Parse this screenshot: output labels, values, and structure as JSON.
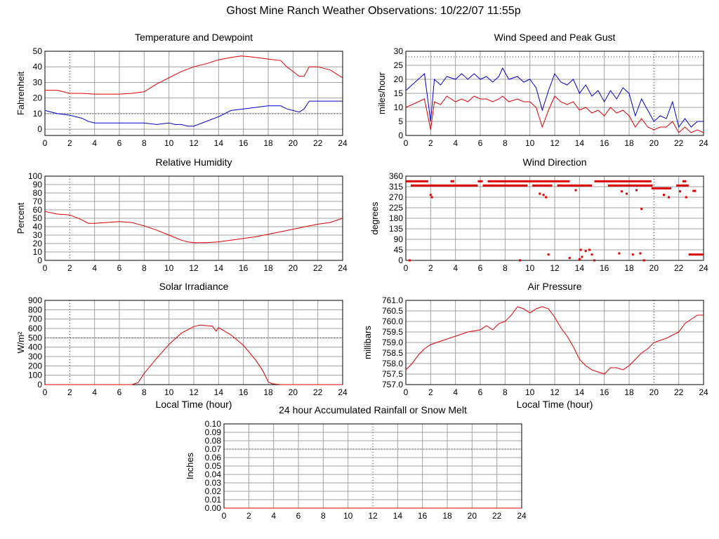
{
  "main_title": "Ghost Mine Ranch Weather Observations: 10/22/07 11:55p",
  "colors": {
    "red": "#dd0000",
    "blue": "#0000cc",
    "grid": "#a0a0a0",
    "axis": "#000000"
  },
  "chart_data": [
    {
      "id": "temp",
      "type": "line",
      "title": "Temperature and Dewpoint",
      "xlabel": "",
      "ylabel": "Fahrenheit",
      "xlim": [
        0,
        24
      ],
      "ylim": [
        -4,
        50
      ],
      "xticks": [
        0,
        2,
        4,
        6,
        8,
        10,
        12,
        14,
        16,
        18,
        20,
        22,
        24
      ],
      "yticks": [
        0,
        10,
        20,
        30,
        40,
        50
      ],
      "grid": true,
      "series": [
        {
          "color": "#dd0000",
          "x": [
            0,
            1,
            2,
            3,
            4,
            5,
            6,
            7,
            8,
            9,
            10,
            11,
            12,
            13,
            14,
            15,
            15.8,
            16.5,
            17,
            18,
            19,
            19.5,
            20,
            20.5,
            20.9,
            21.3,
            22,
            23,
            24
          ],
          "values": [
            25,
            25,
            23,
            23,
            22.5,
            22.5,
            22.5,
            23,
            24,
            29,
            33,
            37,
            40,
            42,
            44.5,
            46,
            47,
            46.5,
            46,
            45,
            44,
            40,
            37,
            34,
            34,
            40,
            40,
            38,
            33
          ]
        },
        {
          "color": "#0000cc",
          "x": [
            0,
            1,
            2,
            3,
            3.5,
            4,
            5,
            6,
            7,
            8,
            9,
            10,
            10.5,
            11,
            11.5,
            12,
            13,
            14,
            15,
            16,
            17,
            18,
            19,
            19.5,
            20,
            20.5,
            20.9,
            21.3,
            22,
            23,
            24
          ],
          "values": [
            12,
            10,
            9,
            7,
            5,
            4,
            4,
            4,
            4,
            4,
            3,
            4,
            3,
            3,
            2,
            2,
            5,
            8,
            12,
            13,
            14,
            15,
            15,
            13,
            12,
            11,
            13,
            18,
            18,
            18,
            18
          ]
        }
      ]
    },
    {
      "id": "wind",
      "type": "line",
      "title": "Wind Speed and Peak Gust",
      "xlabel": "",
      "ylabel": "miles/hour",
      "xlim": [
        0,
        24
      ],
      "ylim": [
        0,
        30
      ],
      "xticks": [
        0,
        2,
        4,
        6,
        8,
        10,
        12,
        14,
        16,
        18,
        20,
        22,
        24
      ],
      "yticks": [
        0,
        5,
        10,
        15,
        20,
        25,
        30
      ],
      "grid": true,
      "series": [
        {
          "color": "#0000cc",
          "x": [
            0,
            0.5,
            1,
            1.5,
            2,
            2.3,
            2.8,
            3.3,
            4,
            4.5,
            5,
            5.5,
            6,
            6.5,
            7,
            7.5,
            7.8,
            8.3,
            9,
            9.5,
            10,
            10.5,
            11,
            11.5,
            12,
            12.5,
            13,
            13.5,
            14,
            14.5,
            15,
            15.5,
            16,
            16.5,
            17,
            17.5,
            18,
            18.5,
            19,
            19.5,
            20,
            20.5,
            21,
            21.5,
            22,
            22.5,
            23,
            23.5,
            24
          ],
          "values": [
            16,
            18,
            20,
            22,
            5,
            20,
            18,
            21,
            20,
            22,
            20,
            22,
            20,
            21,
            19,
            21,
            24,
            20,
            21,
            19,
            20,
            17,
            9,
            16,
            22,
            19,
            18,
            20,
            15,
            18,
            14,
            16,
            12,
            16,
            13,
            17,
            15,
            7,
            13,
            9,
            5,
            7,
            6,
            12,
            3,
            6,
            3,
            5,
            5
          ]
        },
        {
          "color": "#dd0000",
          "x": [
            0,
            0.5,
            1,
            1.5,
            2,
            2.3,
            2.8,
            3.3,
            4,
            4.5,
            5,
            5.5,
            6,
            6.5,
            7,
            7.5,
            7.8,
            8.3,
            9,
            9.5,
            10,
            10.5,
            11,
            11.5,
            12,
            12.5,
            13,
            13.5,
            14,
            14.5,
            15,
            15.5,
            16,
            16.5,
            17,
            17.5,
            18,
            18.5,
            19,
            19.5,
            20,
            20.5,
            21,
            21.5,
            22,
            22.5,
            23,
            23.5,
            24
          ],
          "values": [
            10,
            11,
            12,
            13,
            2,
            12,
            11,
            14,
            12,
            13,
            12,
            14,
            13,
            13,
            12,
            13,
            14,
            12,
            13,
            12,
            12,
            10,
            3,
            9,
            14,
            12,
            11,
            12,
            9,
            10,
            8,
            9,
            7,
            10,
            8,
            9,
            7,
            3,
            6,
            3,
            2,
            3,
            3,
            5,
            1,
            3,
            1,
            2,
            1
          ]
        }
      ]
    },
    {
      "id": "rh",
      "type": "line",
      "title": "Relative Humidity",
      "xlabel": "",
      "ylabel": "Percent",
      "xlim": [
        0,
        24
      ],
      "ylim": [
        0,
        100
      ],
      "xticks": [
        0,
        2,
        4,
        6,
        8,
        10,
        12,
        14,
        16,
        18,
        20,
        22,
        24
      ],
      "yticks": [
        0,
        10,
        20,
        30,
        40,
        50,
        60,
        70,
        80,
        90,
        100
      ],
      "grid": true,
      "series": [
        {
          "color": "#dd0000",
          "x": [
            0,
            1,
            2,
            3,
            3.5,
            4,
            5,
            6,
            7,
            8,
            9,
            10,
            11,
            11.5,
            12,
            13,
            14,
            15,
            16,
            17,
            18,
            19,
            20,
            21,
            22,
            23,
            24
          ],
          "values": [
            58,
            55,
            54,
            48,
            44,
            44,
            45,
            46,
            45,
            41,
            36,
            30,
            24,
            22,
            21,
            21,
            22,
            24,
            26,
            28,
            31,
            34,
            37,
            40,
            43,
            45,
            50
          ]
        }
      ]
    },
    {
      "id": "dir",
      "type": "scatter",
      "title": "Wind Direction",
      "xlabel": "",
      "ylabel": "degrees",
      "xlim": [
        0,
        24
      ],
      "ylim": [
        0,
        360
      ],
      "xticks": [
        0,
        2,
        4,
        6,
        8,
        10,
        12,
        14,
        16,
        18,
        20,
        22,
        24
      ],
      "yticks": [
        0,
        45,
        90,
        135,
        180,
        225,
        270,
        315,
        360
      ],
      "grid": true,
      "series": [
        {
          "color": "#dd0000",
          "bands": [
            {
              "y": 338,
              "from": 0,
              "to": 1.8
            },
            {
              "y": 338,
              "from": 3.6,
              "to": 3.9
            },
            {
              "y": 338,
              "from": 5.8,
              "to": 6.2
            },
            {
              "y": 338,
              "from": 6.6,
              "to": 13.2
            },
            {
              "y": 338,
              "from": 15.2,
              "to": 19.8
            },
            {
              "y": 338,
              "from": 22.3,
              "to": 22.6
            },
            {
              "y": 320,
              "from": 0.4,
              "to": 5.8
            },
            {
              "y": 320,
              "from": 6.2,
              "to": 9.8
            },
            {
              "y": 320,
              "from": 10.2,
              "to": 11.8
            },
            {
              "y": 320,
              "from": 12.2,
              "to": 15.0
            },
            {
              "y": 320,
              "from": 16.3,
              "to": 19.9
            },
            {
              "y": 320,
              "from": 21.8,
              "to": 22.8
            },
            {
              "y": 308,
              "from": 19.8,
              "to": 21.4
            },
            {
              "y": 297,
              "from": 23.1,
              "to": 23.4
            },
            {
              "y": 25,
              "from": 22.8,
              "to": 24
            }
          ],
          "points": [
            [
              0.3,
              0
            ],
            [
              2,
              280
            ],
            [
              2.1,
              270
            ],
            [
              9.2,
              0
            ],
            [
              10.8,
              285
            ],
            [
              11.1,
              280
            ],
            [
              11.3,
              270
            ],
            [
              11.5,
              25
            ],
            [
              13.2,
              10
            ],
            [
              13.7,
              300
            ],
            [
              14.0,
              5
            ],
            [
              14.1,
              45
            ],
            [
              14.2,
              15
            ],
            [
              14.5,
              40
            ],
            [
              14.8,
              45
            ],
            [
              15.0,
              25
            ],
            [
              15.2,
              0
            ],
            [
              17.2,
              30
            ],
            [
              17.4,
              295
            ],
            [
              17.8,
              285
            ],
            [
              18.3,
              25
            ],
            [
              18.6,
              300
            ],
            [
              18.9,
              30
            ],
            [
              19.0,
              220
            ],
            [
              19.2,
              0
            ],
            [
              20.8,
              280
            ],
            [
              21.2,
              270
            ],
            [
              22.1,
              295
            ],
            [
              22.6,
              270
            ]
          ]
        }
      ]
    },
    {
      "id": "solar",
      "type": "line",
      "title": "Solar Irradiance",
      "xlabel": "Local Time (hour)",
      "ylabel": "W/m²",
      "xlim": [
        0,
        24
      ],
      "ylim": [
        0,
        900
      ],
      "xticks": [
        0,
        2,
        4,
        6,
        8,
        10,
        12,
        14,
        16,
        18,
        20,
        22,
        24
      ],
      "yticks": [
        0,
        100,
        200,
        300,
        400,
        500,
        600,
        700,
        800,
        900
      ],
      "grid": true,
      "series": [
        {
          "color": "#dd0000",
          "x": [
            0,
            7,
            7.5,
            8,
            9,
            10,
            11,
            12,
            12.5,
            13,
            13.5,
            13.8,
            14,
            15,
            16,
            17,
            17.6,
            18,
            18.3,
            19,
            24
          ],
          "values": [
            0,
            0,
            20,
            120,
            280,
            430,
            550,
            620,
            635,
            630,
            625,
            570,
            610,
            530,
            420,
            260,
            140,
            30,
            10,
            0,
            0
          ]
        }
      ]
    },
    {
      "id": "pressure",
      "type": "line",
      "title": "Air Pressure",
      "xlabel": "Local Time (hour)",
      "ylabel": "millibars",
      "xlim": [
        0,
        24
      ],
      "ylim": [
        757.0,
        761.0
      ],
      "xticks": [
        0,
        2,
        4,
        6,
        8,
        10,
        12,
        14,
        16,
        18,
        20,
        22,
        24
      ],
      "yticks": [
        757.0,
        757.5,
        758.0,
        758.5,
        759.0,
        759.5,
        760.0,
        760.5,
        761.0
      ],
      "grid": true,
      "series": [
        {
          "color": "#dd0000",
          "x": [
            0,
            0.5,
            1,
            1.5,
            2,
            3,
            4,
            5,
            6,
            6.5,
            7,
            7.5,
            8,
            8.5,
            9,
            9.5,
            10,
            10.5,
            11,
            11.5,
            12,
            12.5,
            13,
            13.5,
            14,
            14.5,
            15,
            15.5,
            16,
            16.5,
            17,
            17.5,
            18,
            18.5,
            19,
            19.5,
            20,
            21,
            22,
            22.5,
            23,
            23.5,
            24
          ],
          "values": [
            757.7,
            758.0,
            758.4,
            758.7,
            758.9,
            759.1,
            759.3,
            759.5,
            759.6,
            759.8,
            759.6,
            759.9,
            760.0,
            760.3,
            760.7,
            760.6,
            760.4,
            760.6,
            760.7,
            760.6,
            760.2,
            759.7,
            759.3,
            758.8,
            758.2,
            757.9,
            757.7,
            757.6,
            757.5,
            757.8,
            757.8,
            757.7,
            757.9,
            758.2,
            758.5,
            758.7,
            759.0,
            759.2,
            759.5,
            759.9,
            760.1,
            760.3,
            760.3
          ]
        }
      ]
    },
    {
      "id": "rain",
      "type": "line",
      "title": "24 hour Accumulated Rainfall or Snow Melt",
      "xlabel": "",
      "ylabel": "Inches",
      "xlim": [
        0,
        24
      ],
      "ylim": [
        0,
        0.1
      ],
      "xticks": [
        0,
        2,
        4,
        6,
        8,
        10,
        12,
        14,
        16,
        18,
        20,
        22,
        24
      ],
      "yticks": [
        0.0,
        0.01,
        0.02,
        0.03,
        0.04,
        0.05,
        0.06,
        0.07,
        0.08,
        0.09,
        0.1
      ],
      "tick_decimals": 2,
      "grid": true,
      "series": [
        {
          "color": "#dd0000",
          "x": [
            0,
            24
          ],
          "values": [
            0,
            0
          ]
        }
      ]
    }
  ]
}
